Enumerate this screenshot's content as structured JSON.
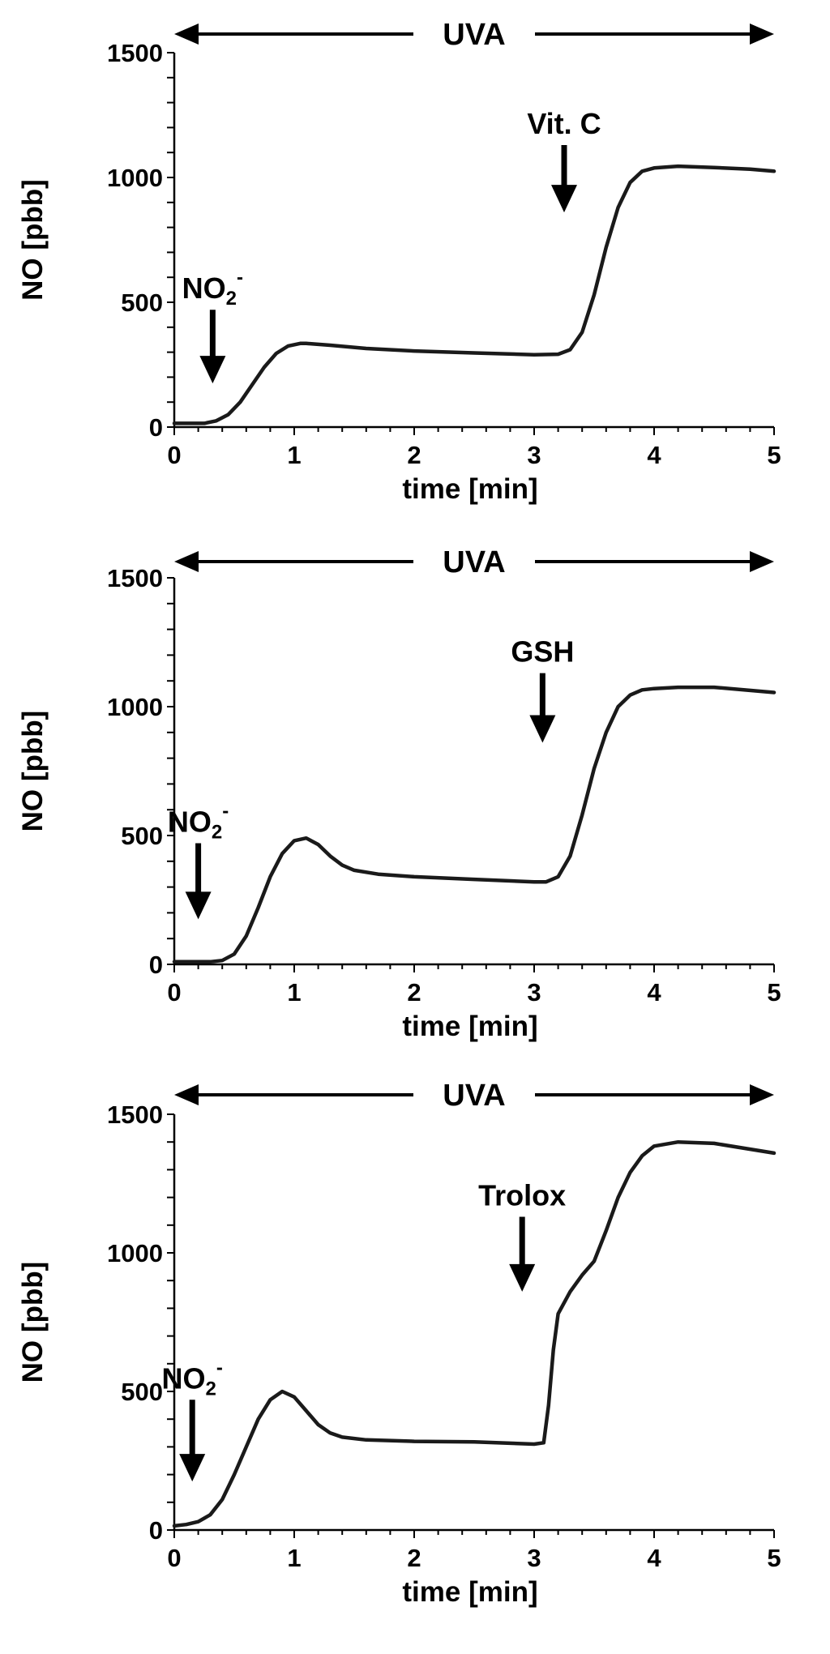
{
  "chart_data": [
    {
      "type": "line",
      "xlabel": "time [min]",
      "ylabel": "NO [pbb]",
      "xlim": [
        0,
        5
      ],
      "ylim": [
        0,
        1500
      ],
      "x_ticks": [
        "0",
        "1",
        "2",
        "3",
        "4",
        "5"
      ],
      "y_ticks": [
        "0",
        "500",
        "1000",
        "1500"
      ],
      "banner": {
        "label": "UVA",
        "x_range": [
          0,
          5
        ]
      },
      "annotations": [
        {
          "label": "NO",
          "sub": "2",
          "sup": "-",
          "x": 0.32,
          "y_top": 470,
          "y_bottom": 175
        },
        {
          "label": "Vit. C",
          "x": 3.25,
          "y_top": 1130,
          "y_bottom": 860
        }
      ],
      "grid": false,
      "series": [
        {
          "x": [
            0,
            0.25,
            0.35,
            0.45,
            0.55,
            0.65,
            0.75,
            0.85,
            0.95,
            1.05,
            1.1,
            1.3,
            1.6,
            2.0,
            2.5,
            3.0,
            3.2,
            3.3,
            3.4,
            3.5,
            3.6,
            3.7,
            3.8,
            3.9,
            4.0,
            4.2,
            4.5,
            4.8,
            5.0
          ],
          "y": [
            15,
            15,
            25,
            50,
            100,
            170,
            240,
            295,
            325,
            335,
            335,
            328,
            315,
            305,
            297,
            290,
            292,
            310,
            380,
            530,
            720,
            880,
            980,
            1025,
            1038,
            1045,
            1040,
            1033,
            1025
          ]
        }
      ]
    },
    {
      "type": "line",
      "xlabel": "time [min]",
      "ylabel": "NO [pbb]",
      "xlim": [
        0,
        5
      ],
      "ylim": [
        0,
        1500
      ],
      "x_ticks": [
        "0",
        "1",
        "2",
        "3",
        "4",
        "5"
      ],
      "y_ticks": [
        "0",
        "500",
        "1000",
        "1500"
      ],
      "banner": {
        "label": "UVA",
        "x_range": [
          0,
          5
        ]
      },
      "annotations": [
        {
          "label": "NO",
          "sub": "2",
          "sup": "-",
          "x": 0.2,
          "y_top": 470,
          "y_bottom": 175
        },
        {
          "label": "GSH",
          "x": 3.07,
          "y_top": 1130,
          "y_bottom": 860
        }
      ],
      "grid": false,
      "series": [
        {
          "x": [
            0,
            0.3,
            0.4,
            0.5,
            0.6,
            0.7,
            0.8,
            0.9,
            1.0,
            1.1,
            1.2,
            1.3,
            1.4,
            1.5,
            1.7,
            2.0,
            2.5,
            3.0,
            3.1,
            3.2,
            3.3,
            3.4,
            3.5,
            3.6,
            3.7,
            3.8,
            3.9,
            4.0,
            4.2,
            4.5,
            5.0
          ],
          "y": [
            10,
            10,
            15,
            40,
            110,
            220,
            340,
            430,
            480,
            490,
            465,
            420,
            385,
            365,
            350,
            340,
            330,
            320,
            320,
            340,
            420,
            580,
            760,
            900,
            1000,
            1045,
            1065,
            1070,
            1075,
            1075,
            1055
          ]
        }
      ]
    },
    {
      "type": "line",
      "xlabel": "time [min]",
      "ylabel": "NO [pbb]",
      "xlim": [
        0,
        5
      ],
      "ylim": [
        0,
        1500
      ],
      "x_ticks": [
        "0",
        "1",
        "2",
        "3",
        "4",
        "5"
      ],
      "y_ticks": [
        "0",
        "500",
        "1000",
        "1500"
      ],
      "banner": {
        "label": "UVA",
        "x_range": [
          0,
          5
        ]
      },
      "annotations": [
        {
          "label": "NO",
          "sub": "2",
          "sup": "-",
          "x": 0.15,
          "y_top": 470,
          "y_bottom": 175
        },
        {
          "label": "Trolox",
          "x": 2.9,
          "y_top": 1130,
          "y_bottom": 860
        }
      ],
      "grid": false,
      "series": [
        {
          "x": [
            0,
            0.1,
            0.2,
            0.3,
            0.4,
            0.5,
            0.6,
            0.7,
            0.8,
            0.9,
            1.0,
            1.1,
            1.2,
            1.3,
            1.4,
            1.6,
            2.0,
            2.5,
            3.0,
            3.08,
            3.12,
            3.16,
            3.2,
            3.3,
            3.4,
            3.5,
            3.6,
            3.7,
            3.8,
            3.9,
            4.0,
            4.2,
            4.5,
            5.0
          ],
          "y": [
            15,
            20,
            30,
            55,
            110,
            200,
            300,
            400,
            470,
            500,
            480,
            430,
            380,
            350,
            335,
            325,
            320,
            318,
            310,
            315,
            450,
            650,
            780,
            860,
            920,
            970,
            1080,
            1200,
            1290,
            1350,
            1385,
            1400,
            1395,
            1360
          ]
        }
      ]
    }
  ]
}
